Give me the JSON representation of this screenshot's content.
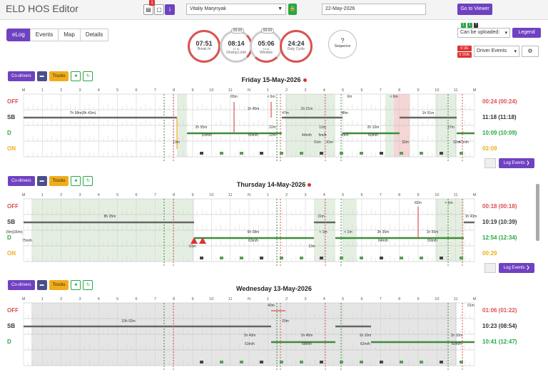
{
  "app": {
    "title": "ELD HOS Editor"
  },
  "toolbar": {
    "driver": "Vitaliy Marynyak",
    "date": "22-May-2026",
    "goto_label": "Go to Viewer",
    "alert_count": "1"
  },
  "tabs": [
    {
      "label": "eLog",
      "active": true
    },
    {
      "label": "Events",
      "active": false
    },
    {
      "label": "Map",
      "active": false
    },
    {
      "label": "Details",
      "active": false
    }
  ],
  "clocks": [
    {
      "value": "07:51",
      "label": "Break In",
      "sub": "",
      "pill": "",
      "alert": true
    },
    {
      "value": "08:14",
      "label": "Driving Limit",
      "sub": "11 hr",
      "pill": "00:00",
      "alert": false
    },
    {
      "value": "05:06",
      "label": "Window",
      "sub": "14 hr",
      "pill": "00:00",
      "alert": false
    },
    {
      "value": "24:24",
      "label": "Duty Cycle",
      "sub": "",
      "pill": "",
      "alert": true
    }
  ],
  "sequence": {
    "value": "?",
    "label": "Sequence"
  },
  "right_panel": {
    "upload_label": "Can be uploaded:",
    "legend_label": "Legend",
    "mini_badges": [
      "1",
      "1",
      "?"
    ],
    "ue_badges": [
      "0 UE",
      "0 OUE"
    ],
    "device_select": "Driver Events"
  },
  "controls": {
    "codrivers": "Co-drivers",
    "trucks": "Trucks",
    "events_label": "Log Events"
  },
  "status_labels": [
    "OFF",
    "SB",
    "D",
    "ON"
  ],
  "hour_labels": [
    "M",
    "1",
    "2",
    "3",
    "4",
    "5",
    "6",
    "7",
    "8",
    "9",
    "10",
    "11",
    "N",
    "1",
    "2",
    "3",
    "4",
    "5",
    "6",
    "7",
    "8",
    "9",
    "10",
    "11",
    "M"
  ],
  "days": [
    {
      "title": "Friday 15-May-2026",
      "totals": [
        "00:24 (00:24)",
        "11:18 (11:18)",
        "10:09 (10:09)",
        "02:09"
      ],
      "labels": [
        "7h 58m(8h 43m)",
        "2h 55m",
        "63m/h",
        "1h 45m",
        "60m/h",
        "47m",
        "1h 21m",
        "44m/h",
        "48m",
        "2h 10m",
        "60m/h",
        "1h 51m",
        "13m",
        "65m",
        "< 6m",
        "6m",
        "< 6m",
        "12m",
        "32m",
        "22m",
        "41m",
        "5m/h",
        "0m/h",
        "01m",
        "27m",
        "22m",
        "32m",
        "47m/h"
      ]
    },
    {
      "title": "Thursday 14-May-2026",
      "totals": [
        "00:18 (00:18)",
        "10:19 (10:39)",
        "12:54 (12:34)",
        "00:29"
      ],
      "labels": [
        "8h 35m",
        "6h 08m",
        "63m/h",
        "3h 35m",
        "64m/h",
        "1h 55m",
        "59m/h",
        "(9m)(30m)",
        "75m/h",
        "31m",
        "13m",
        "< 1m",
        "82m",
        "< 1m",
        "1h 43m",
        "01m",
        "< 1m"
      ]
    },
    {
      "title": "Wednesday 13-May-2026",
      "totals": [
        "01:06 (01:22)",
        "10:23 (08:54)",
        "10:41 (12:47)",
        ""
      ],
      "labels": [
        "10h 02m",
        "1h 43m",
        "53m/h",
        "1h 45m",
        "68m/h",
        "40m",
        "20m",
        "1h 10m",
        "62m/h",
        "1h 10m",
        "60m/h",
        "01m"
      ]
    }
  ]
}
